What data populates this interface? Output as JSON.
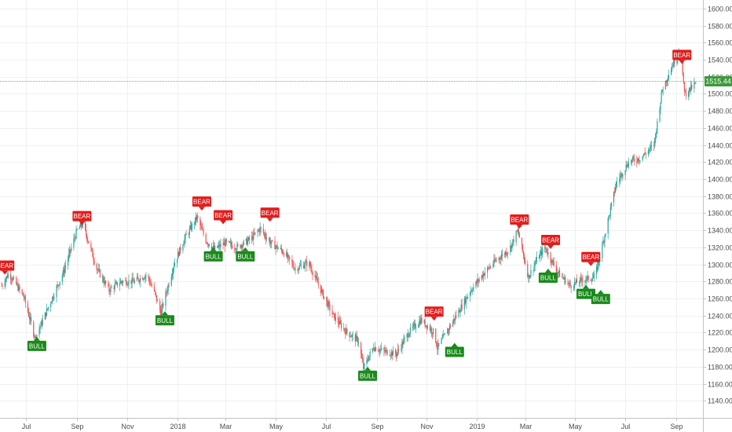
{
  "chart_data": {
    "type": "candlestick",
    "y_axis": {
      "ylim": [
        1120,
        1610
      ],
      "ticks": [
        "1140.00",
        "1160.00",
        "1180.00",
        "1200.00",
        "1220.00",
        "1240.00",
        "1260.00",
        "1280.00",
        "1300.00",
        "1320.00",
        "1340.00",
        "1360.00",
        "1380.00",
        "1400.00",
        "1420.00",
        "1440.00",
        "1460.00",
        "1480.00",
        "1500.00",
        "1520.00",
        "1540.00",
        "1560.00",
        "1580.00",
        "1600.00"
      ]
    },
    "x_axis": {
      "ticks": [
        {
          "label": "Jul",
          "date": "2017-07-01"
        },
        {
          "label": "Sep",
          "date": "2017-09-01"
        },
        {
          "label": "Nov",
          "date": "2017-11-01"
        },
        {
          "label": "2018",
          "date": "2018-01-01"
        },
        {
          "label": "Mar",
          "date": "2018-03-01"
        },
        {
          "label": "May",
          "date": "2018-05-01"
        },
        {
          "label": "Jul",
          "date": "2018-07-01"
        },
        {
          "label": "Sep",
          "date": "2018-09-01"
        },
        {
          "label": "Nov",
          "date": "2018-11-01"
        },
        {
          "label": "2019",
          "date": "2019-01-01"
        },
        {
          "label": "Mar",
          "date": "2019-03-01"
        },
        {
          "label": "May",
          "date": "2019-05-01"
        },
        {
          "label": "Jul",
          "date": "2019-07-01"
        },
        {
          "label": "Sep",
          "date": "2019-09-01"
        }
      ]
    },
    "x_range": [
      "2017-06-01",
      "2019-09-25"
    ],
    "current_price": {
      "value": 1515.44,
      "label": "1515.44"
    },
    "price_path": [
      [
        "2017-06-01",
        1275
      ],
      [
        "2017-06-10",
        1290
      ],
      [
        "2017-06-28",
        1262
      ],
      [
        "2017-07-12",
        1213
      ],
      [
        "2017-07-28",
        1250
      ],
      [
        "2017-08-15",
        1290
      ],
      [
        "2017-09-01",
        1340
      ],
      [
        "2017-09-08",
        1348
      ],
      [
        "2017-09-25",
        1295
      ],
      [
        "2017-10-10",
        1270
      ],
      [
        "2017-10-25",
        1280
      ],
      [
        "2017-11-10",
        1280
      ],
      [
        "2017-11-25",
        1288
      ],
      [
        "2017-12-05",
        1265
      ],
      [
        "2017-12-12",
        1243
      ],
      [
        "2017-12-28",
        1300
      ],
      [
        "2018-01-10",
        1330
      ],
      [
        "2018-01-25",
        1355
      ],
      [
        "2018-02-05",
        1328
      ],
      [
        "2018-02-15",
        1318
      ],
      [
        "2018-03-01",
        1325
      ],
      [
        "2018-03-15",
        1320
      ],
      [
        "2018-04-01",
        1330
      ],
      [
        "2018-04-12",
        1342
      ],
      [
        "2018-04-25",
        1325
      ],
      [
        "2018-05-10",
        1315
      ],
      [
        "2018-05-25",
        1295
      ],
      [
        "2018-06-10",
        1302
      ],
      [
        "2018-06-25",
        1270
      ],
      [
        "2018-07-10",
        1240
      ],
      [
        "2018-07-25",
        1222
      ],
      [
        "2018-08-10",
        1210
      ],
      [
        "2018-08-16",
        1178
      ],
      [
        "2018-08-28",
        1203
      ],
      [
        "2018-09-10",
        1198
      ],
      [
        "2018-09-25",
        1195
      ],
      [
        "2018-10-10",
        1220
      ],
      [
        "2018-10-25",
        1235
      ],
      [
        "2018-11-10",
        1220
      ],
      [
        "2018-11-14",
        1202
      ],
      [
        "2018-11-28",
        1225
      ],
      [
        "2018-12-10",
        1245
      ],
      [
        "2018-12-25",
        1270
      ],
      [
        "2019-01-10",
        1290
      ],
      [
        "2019-01-25",
        1305
      ],
      [
        "2019-02-10",
        1318
      ],
      [
        "2019-02-20",
        1340
      ],
      [
        "2019-03-05",
        1285
      ],
      [
        "2019-03-15",
        1305
      ],
      [
        "2019-03-25",
        1320
      ],
      [
        "2019-04-10",
        1290
      ],
      [
        "2019-04-25",
        1275
      ],
      [
        "2019-05-10",
        1282
      ],
      [
        "2019-05-25",
        1285
      ],
      [
        "2019-06-05",
        1330
      ],
      [
        "2019-06-20",
        1395
      ],
      [
        "2019-07-05",
        1420
      ],
      [
        "2019-07-20",
        1425
      ],
      [
        "2019-08-05",
        1440
      ],
      [
        "2019-08-15",
        1505
      ],
      [
        "2019-08-28",
        1535
      ],
      [
        "2019-09-04",
        1550
      ],
      [
        "2019-09-12",
        1500
      ],
      [
        "2019-09-25",
        1512
      ]
    ],
    "signals": [
      {
        "type": "bear",
        "label": "BEAR",
        "date": "2017-06-05",
        "price": 1288
      },
      {
        "type": "bull",
        "label": "BULL",
        "date": "2017-07-14",
        "price": 1215
      },
      {
        "type": "bear",
        "label": "BEAR",
        "date": "2017-09-07",
        "price": 1346
      },
      {
        "type": "bull",
        "label": "BULL",
        "date": "2017-12-17",
        "price": 1245
      },
      {
        "type": "bear",
        "label": "BEAR",
        "date": "2018-01-31",
        "price": 1363
      },
      {
        "type": "bull",
        "label": "BULL",
        "date": "2018-02-14",
        "price": 1320
      },
      {
        "type": "bear",
        "label": "BEAR",
        "date": "2018-02-26",
        "price": 1347
      },
      {
        "type": "bull",
        "label": "BULL",
        "date": "2018-03-25",
        "price": 1320
      },
      {
        "type": "bear",
        "label": "BEAR",
        "date": "2018-04-24",
        "price": 1350
      },
      {
        "type": "bull",
        "label": "BULL",
        "date": "2018-08-21",
        "price": 1180
      },
      {
        "type": "bear",
        "label": "BEAR",
        "date": "2018-11-10",
        "price": 1234
      },
      {
        "type": "bull",
        "label": "BULL",
        "date": "2018-12-05",
        "price": 1208
      },
      {
        "type": "bear",
        "label": "BEAR",
        "date": "2019-02-22",
        "price": 1342
      },
      {
        "type": "bear",
        "label": "BEAR",
        "date": "2019-04-01",
        "price": 1318
      },
      {
        "type": "bull",
        "label": "BULL",
        "date": "2019-03-29",
        "price": 1295
      },
      {
        "type": "bear",
        "label": "BEAR",
        "date": "2019-05-20",
        "price": 1298
      },
      {
        "type": "bull",
        "label": "BULL",
        "date": "2019-05-14",
        "price": 1276
      },
      {
        "type": "bull",
        "label": "BULL",
        "date": "2019-06-01",
        "price": 1270
      },
      {
        "type": "bear",
        "label": "BEAR",
        "date": "2019-09-08",
        "price": 1535
      }
    ],
    "grid": true,
    "colors": {
      "up": "#26a69a",
      "down": "#ef5350",
      "bear_label": "#e11d1d",
      "bull_label": "#1b8a1b",
      "price_line": "#3a9a3a",
      "grid": "#eef0f3",
      "axis": "#bfc3c8"
    }
  }
}
